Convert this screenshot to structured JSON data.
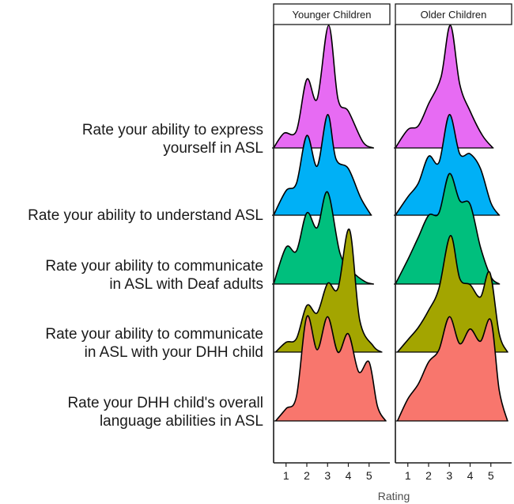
{
  "chart_data": {
    "type": "ridgeline",
    "xlabel": "Rating",
    "xticks": [
      1,
      2,
      3,
      4,
      5
    ],
    "xlim": [
      0.4,
      6.0
    ],
    "panels": [
      "Younger Children",
      "Older Children"
    ],
    "categories": [
      {
        "label_lines": [
          "Rate your ability to express",
          "yourself in ASL"
        ],
        "color": "#E76BF3"
      },
      {
        "label_lines": [
          "Rate your ability to understand ASL"
        ],
        "color": "#00B0F6"
      },
      {
        "label_lines": [
          "Rate your ability to communicate",
          "in ASL with Deaf adults"
        ],
        "color": "#00BF7D"
      },
      {
        "label_lines": [
          "Rate your ability to communicate",
          "in ASL with your DHH child"
        ],
        "color": "#A3A500"
      },
      {
        "label_lines": [
          "Rate your DHH child's overall",
          "language abilities in ASL"
        ],
        "color": "#F8766D"
      }
    ],
    "series": [
      {
        "panel": "Younger Children",
        "category": 0,
        "density": [
          [
            0.4,
            0
          ],
          [
            0.9,
            0.12
          ],
          [
            1.5,
            0.14
          ],
          [
            2.0,
            0.56
          ],
          [
            2.5,
            0.4
          ],
          [
            3.05,
            1.0
          ],
          [
            3.5,
            0.4
          ],
          [
            4.0,
            0.3
          ],
          [
            4.7,
            0.05
          ],
          [
            5.2,
            0
          ]
        ]
      },
      {
        "panel": "Younger Children",
        "category": 1,
        "density": [
          [
            0.4,
            0
          ],
          [
            1.0,
            0.2
          ],
          [
            1.5,
            0.26
          ],
          [
            2.0,
            0.65
          ],
          [
            2.5,
            0.4
          ],
          [
            3.0,
            0.82
          ],
          [
            3.4,
            0.46
          ],
          [
            4.0,
            0.38
          ],
          [
            4.6,
            0.14
          ],
          [
            5.1,
            0
          ]
        ]
      },
      {
        "panel": "Younger Children",
        "category": 2,
        "density": [
          [
            0.4,
            0
          ],
          [
            1.0,
            0.3
          ],
          [
            1.5,
            0.27
          ],
          [
            2.0,
            0.58
          ],
          [
            2.5,
            0.46
          ],
          [
            3.0,
            0.75
          ],
          [
            3.6,
            0.25
          ],
          [
            4.2,
            0.1
          ],
          [
            4.8,
            0.02
          ],
          [
            5.2,
            0
          ]
        ]
      },
      {
        "panel": "Younger Children",
        "category": 3,
        "density": [
          [
            0.5,
            0
          ],
          [
            1.0,
            0.08
          ],
          [
            1.5,
            0.11
          ],
          [
            2.0,
            0.38
          ],
          [
            2.5,
            0.32
          ],
          [
            3.0,
            0.56
          ],
          [
            3.5,
            0.52
          ],
          [
            4.05,
            1.0
          ],
          [
            4.55,
            0.26
          ],
          [
            5.2,
            0.05
          ],
          [
            5.6,
            0
          ]
        ]
      },
      {
        "panel": "Younger Children",
        "category": 4,
        "density": [
          [
            0.5,
            0
          ],
          [
            1.0,
            0.1
          ],
          [
            1.5,
            0.2
          ],
          [
            2.0,
            0.85
          ],
          [
            2.5,
            0.58
          ],
          [
            3.0,
            0.85
          ],
          [
            3.5,
            0.56
          ],
          [
            4.0,
            0.71
          ],
          [
            4.5,
            0.4
          ],
          [
            5.0,
            0.48
          ],
          [
            5.4,
            0.12
          ],
          [
            5.8,
            0
          ]
        ]
      },
      {
        "panel": "Older Children",
        "category": 0,
        "density": [
          [
            0.4,
            0
          ],
          [
            1.0,
            0.15
          ],
          [
            1.5,
            0.18
          ],
          [
            2.0,
            0.36
          ],
          [
            2.6,
            0.58
          ],
          [
            3.05,
            1.0
          ],
          [
            3.5,
            0.52
          ],
          [
            4.0,
            0.3
          ],
          [
            4.6,
            0.1
          ],
          [
            5.1,
            0
          ]
        ]
      },
      {
        "panel": "Older Children",
        "category": 1,
        "density": [
          [
            0.4,
            0
          ],
          [
            1.0,
            0.15
          ],
          [
            1.5,
            0.26
          ],
          [
            2.0,
            0.48
          ],
          [
            2.5,
            0.43
          ],
          [
            3.0,
            0.82
          ],
          [
            3.5,
            0.5
          ],
          [
            4.0,
            0.5
          ],
          [
            4.5,
            0.38
          ],
          [
            5.0,
            0.1
          ],
          [
            5.4,
            0
          ]
        ]
      },
      {
        "panel": "Older Children",
        "category": 2,
        "density": [
          [
            0.4,
            0
          ],
          [
            1.0,
            0.2
          ],
          [
            1.5,
            0.38
          ],
          [
            2.0,
            0.56
          ],
          [
            2.5,
            0.58
          ],
          [
            3.0,
            0.9
          ],
          [
            3.5,
            0.68
          ],
          [
            4.0,
            0.65
          ],
          [
            4.5,
            0.3
          ],
          [
            5.0,
            0.06
          ],
          [
            5.4,
            0
          ]
        ]
      },
      {
        "panel": "Older Children",
        "category": 3,
        "density": [
          [
            0.5,
            0
          ],
          [
            1.0,
            0.1
          ],
          [
            1.5,
            0.2
          ],
          [
            2.0,
            0.34
          ],
          [
            2.5,
            0.52
          ],
          [
            3.05,
            0.95
          ],
          [
            3.5,
            0.6
          ],
          [
            4.0,
            0.55
          ],
          [
            4.5,
            0.45
          ],
          [
            4.95,
            0.65
          ],
          [
            5.4,
            0.15
          ],
          [
            5.8,
            0
          ]
        ]
      },
      {
        "panel": "Older Children",
        "category": 4,
        "density": [
          [
            0.5,
            0
          ],
          [
            1.0,
            0.18
          ],
          [
            1.5,
            0.3
          ],
          [
            2.0,
            0.48
          ],
          [
            2.5,
            0.58
          ],
          [
            3.0,
            0.85
          ],
          [
            3.5,
            0.63
          ],
          [
            4.0,
            0.75
          ],
          [
            4.5,
            0.65
          ],
          [
            5.0,
            0.82
          ],
          [
            5.4,
            0.25
          ],
          [
            5.8,
            0
          ]
        ]
      }
    ]
  }
}
